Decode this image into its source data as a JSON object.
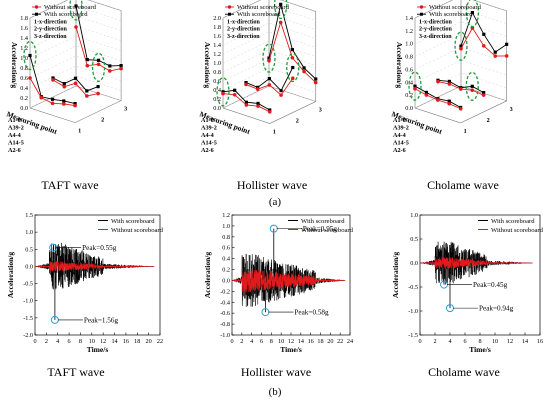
{
  "colors": {
    "with": "#000000",
    "without": "#e31a1c",
    "highlight": "#1f9a3a",
    "marker_ring": "#2a9fd6"
  },
  "panel_a_tag": "(a)",
  "panel_b_tag": "(b)",
  "chart_data": [
    {
      "type": "line",
      "panel": "a",
      "subtitle": "TAFT wave",
      "ylabel": "Acceleration/g",
      "xlabel": "Measuring point",
      "ylim": [
        0,
        1.8
      ],
      "y_ticks": [
        "0.0",
        "0.2",
        "0.4",
        "0.6",
        "0.8",
        "1.0",
        "1.2",
        "1.4",
        "1.6",
        "1.8"
      ],
      "categories": [
        "A1-0",
        "A39-2",
        "A4-4",
        "A14-5",
        "A2-6"
      ],
      "directions": [
        "1",
        "2",
        "3"
      ],
      "legend": [
        "Without scoreboard",
        "With scoreboard",
        "1-x-direction",
        "2-y-direction",
        "3-z-direction"
      ],
      "series": [
        {
          "name": "With scoreboard",
          "direction": "1",
          "values": [
            1.05,
            0.3,
            0.32,
            0.36,
            0.38
          ]
        },
        {
          "name": "Without scoreboard",
          "direction": "1",
          "values": [
            0.6,
            0.28,
            0.24,
            0.3,
            0.34
          ]
        },
        {
          "name": "With scoreboard",
          "direction": "2",
          "values": [
            0.38,
            0.34,
            0.52,
            0.34,
            0.5
          ]
        },
        {
          "name": "Without scoreboard",
          "direction": "2",
          "values": [
            0.34,
            0.28,
            0.42,
            0.24,
            0.36
          ]
        },
        {
          "name": "With scoreboard",
          "direction": "3",
          "values": [
            1.6,
            0.6,
            0.66,
            0.62,
            0.7
          ]
        },
        {
          "name": "Without scoreboard",
          "direction": "3",
          "values": [
            1.18,
            0.48,
            0.58,
            0.52,
            0.64
          ]
        }
      ]
    },
    {
      "type": "line",
      "panel": "a",
      "subtitle": "Hollister wave",
      "ylabel": "Acceleration/g",
      "xlabel": "Measuring point",
      "ylim": [
        0,
        2.0
      ],
      "y_ticks": [
        "0.0",
        "0.2",
        "0.4",
        "0.6",
        "0.8",
        "1.0",
        "1.2",
        "1.4",
        "1.6",
        "1.8",
        "2.0"
      ],
      "categories": [
        "A1-0",
        "A39-2",
        "A4-4",
        "A14-5",
        "A2-6"
      ],
      "directions": [
        "1",
        "2",
        "3"
      ],
      "legend": [
        "Without scoreboard",
        "With scoreboard",
        "1-x-direction",
        "2-y-direction",
        "3-z-direction"
      ],
      "series": [
        {
          "name": "With scoreboard",
          "direction": "1",
          "values": [
            0.36,
            0.48,
            0.3,
            0.36,
            0.3
          ]
        },
        {
          "name": "Without scoreboard",
          "direction": "1",
          "values": [
            0.32,
            0.38,
            0.24,
            0.3,
            0.26
          ]
        },
        {
          "name": "With scoreboard",
          "direction": "2",
          "values": [
            0.32,
            0.3,
            0.58,
            0.4,
            1.0
          ]
        },
        {
          "name": "Without scoreboard",
          "direction": "2",
          "values": [
            0.28,
            0.26,
            0.44,
            0.3,
            0.76
          ]
        },
        {
          "name": "With scoreboard",
          "direction": "3",
          "values": [
            0.62,
            1.9,
            0.98,
            0.66,
            0.5
          ]
        },
        {
          "name": "Without scoreboard",
          "direction": "3",
          "values": [
            0.56,
            1.5,
            0.8,
            0.58,
            0.42
          ]
        }
      ]
    },
    {
      "type": "line",
      "panel": "a",
      "subtitle": "Cholame wave",
      "ylabel": "Acceleration/g",
      "xlabel": "Measuring point",
      "ylim": [
        0,
        1.4
      ],
      "y_ticks": [
        "0.0",
        "0.2",
        "0.4",
        "0.6",
        "0.8",
        "1.0",
        "1.2",
        "1.4"
      ],
      "categories": [
        "A1-0",
        "A39-2",
        "A4-4",
        "A14-5",
        "A2-6"
      ],
      "directions": [
        "1",
        "2",
        "3"
      ],
      "legend": [
        "Without scoreboard",
        "With scoreboard",
        "1-x-direction",
        "2-y-direction",
        "3-z-direction"
      ],
      "series": [
        {
          "name": "With scoreboard",
          "direction": "1",
          "values": [
            0.34,
            0.3,
            0.26,
            0.28,
            0.24
          ]
        },
        {
          "name": "Without scoreboard",
          "direction": "1",
          "values": [
            0.3,
            0.26,
            0.24,
            0.24,
            0.22
          ]
        },
        {
          "name": "With scoreboard",
          "direction": "2",
          "values": [
            0.26,
            0.3,
            0.26,
            0.34,
            0.3
          ]
        },
        {
          "name": "Without scoreboard",
          "direction": "2",
          "values": [
            0.24,
            0.26,
            0.24,
            0.28,
            0.26
          ]
        },
        {
          "name": "With scoreboard",
          "direction": "3",
          "values": [
            0.62,
            1.2,
            0.92,
            0.7,
            0.88
          ]
        },
        {
          "name": "Without scoreboard",
          "direction": "3",
          "values": [
            0.58,
            0.96,
            0.74,
            0.64,
            0.7
          ]
        }
      ]
    },
    {
      "type": "line",
      "panel": "b",
      "subtitle": "TAFT wave",
      "xlabel": "Time/s",
      "ylabel": "Acceleration/g",
      "xlim": [
        0,
        22
      ],
      "ylim": [
        -2.0,
        1.5
      ],
      "x_ticks": [
        "0",
        "2",
        "4",
        "6",
        "8",
        "10",
        "12",
        "14",
        "16",
        "18",
        "20",
        "22"
      ],
      "y_ticks": [
        "-2.0",
        "-1.5",
        "-1.0",
        "-0.5",
        "0.0",
        "0.5",
        "1.0",
        "1.5"
      ],
      "legend": [
        "With scoreboard",
        "Without scoreboard"
      ],
      "duration": 21,
      "strong_start": 2.5,
      "strong_end": 12,
      "with_envelope": 0.7,
      "without_envelope": 0.15,
      "peaks": [
        {
          "label": "Peak=0.55g",
          "t": 3.2,
          "value": 0.55
        },
        {
          "label": "Peak=1.56g",
          "t": 3.5,
          "value": -1.56
        }
      ]
    },
    {
      "type": "line",
      "panel": "b",
      "subtitle": "Hollister wave",
      "xlabel": "Time/s",
      "ylabel": "Acceleration/g",
      "xlim": [
        0,
        24
      ],
      "ylim": [
        -1.0,
        1.2
      ],
      "x_ticks": [
        "0",
        "2",
        "4",
        "6",
        "8",
        "10",
        "12",
        "14",
        "16",
        "18",
        "20",
        "22",
        "24"
      ],
      "y_ticks": [
        "-1.0",
        "-0.8",
        "-0.6",
        "-0.4",
        "-0.2",
        "0.0",
        "0.2",
        "0.4",
        "0.6",
        "0.8",
        "1.0",
        "1.2"
      ],
      "legend": [
        "With scoreboard",
        "Without scoreboard"
      ],
      "duration": 23,
      "strong_start": 2,
      "strong_end": 17,
      "with_envelope": 0.5,
      "without_envelope": 0.22,
      "peaks": [
        {
          "label": "Peak=0.95g",
          "t": 8.5,
          "value": 0.95
        },
        {
          "label": "Peak=0.58g",
          "t": 6.8,
          "value": -0.58
        }
      ]
    },
    {
      "type": "line",
      "panel": "b",
      "subtitle": "Cholame wave",
      "xlabel": "Time/s",
      "ylabel": "Acceleration/g",
      "xlim": [
        0,
        16
      ],
      "ylim": [
        -1.5,
        1.0
      ],
      "x_ticks": [
        "0",
        "2",
        "4",
        "6",
        "8",
        "10",
        "12",
        "14",
        "16"
      ],
      "y_ticks": [
        "-1.5",
        "-1.0",
        "-0.5",
        "0.0",
        "0.5",
        "1.0"
      ],
      "legend": [
        "With scoreboard",
        "Without scoreboard"
      ],
      "duration": 15,
      "strong_start": 2,
      "strong_end": 9,
      "with_envelope": 0.45,
      "without_envelope": 0.12,
      "peaks": [
        {
          "label": "Peak=0.45g",
          "t": 3.2,
          "value": -0.45
        },
        {
          "label": "Peak=0.94g",
          "t": 4.0,
          "value": -0.94
        }
      ]
    }
  ]
}
